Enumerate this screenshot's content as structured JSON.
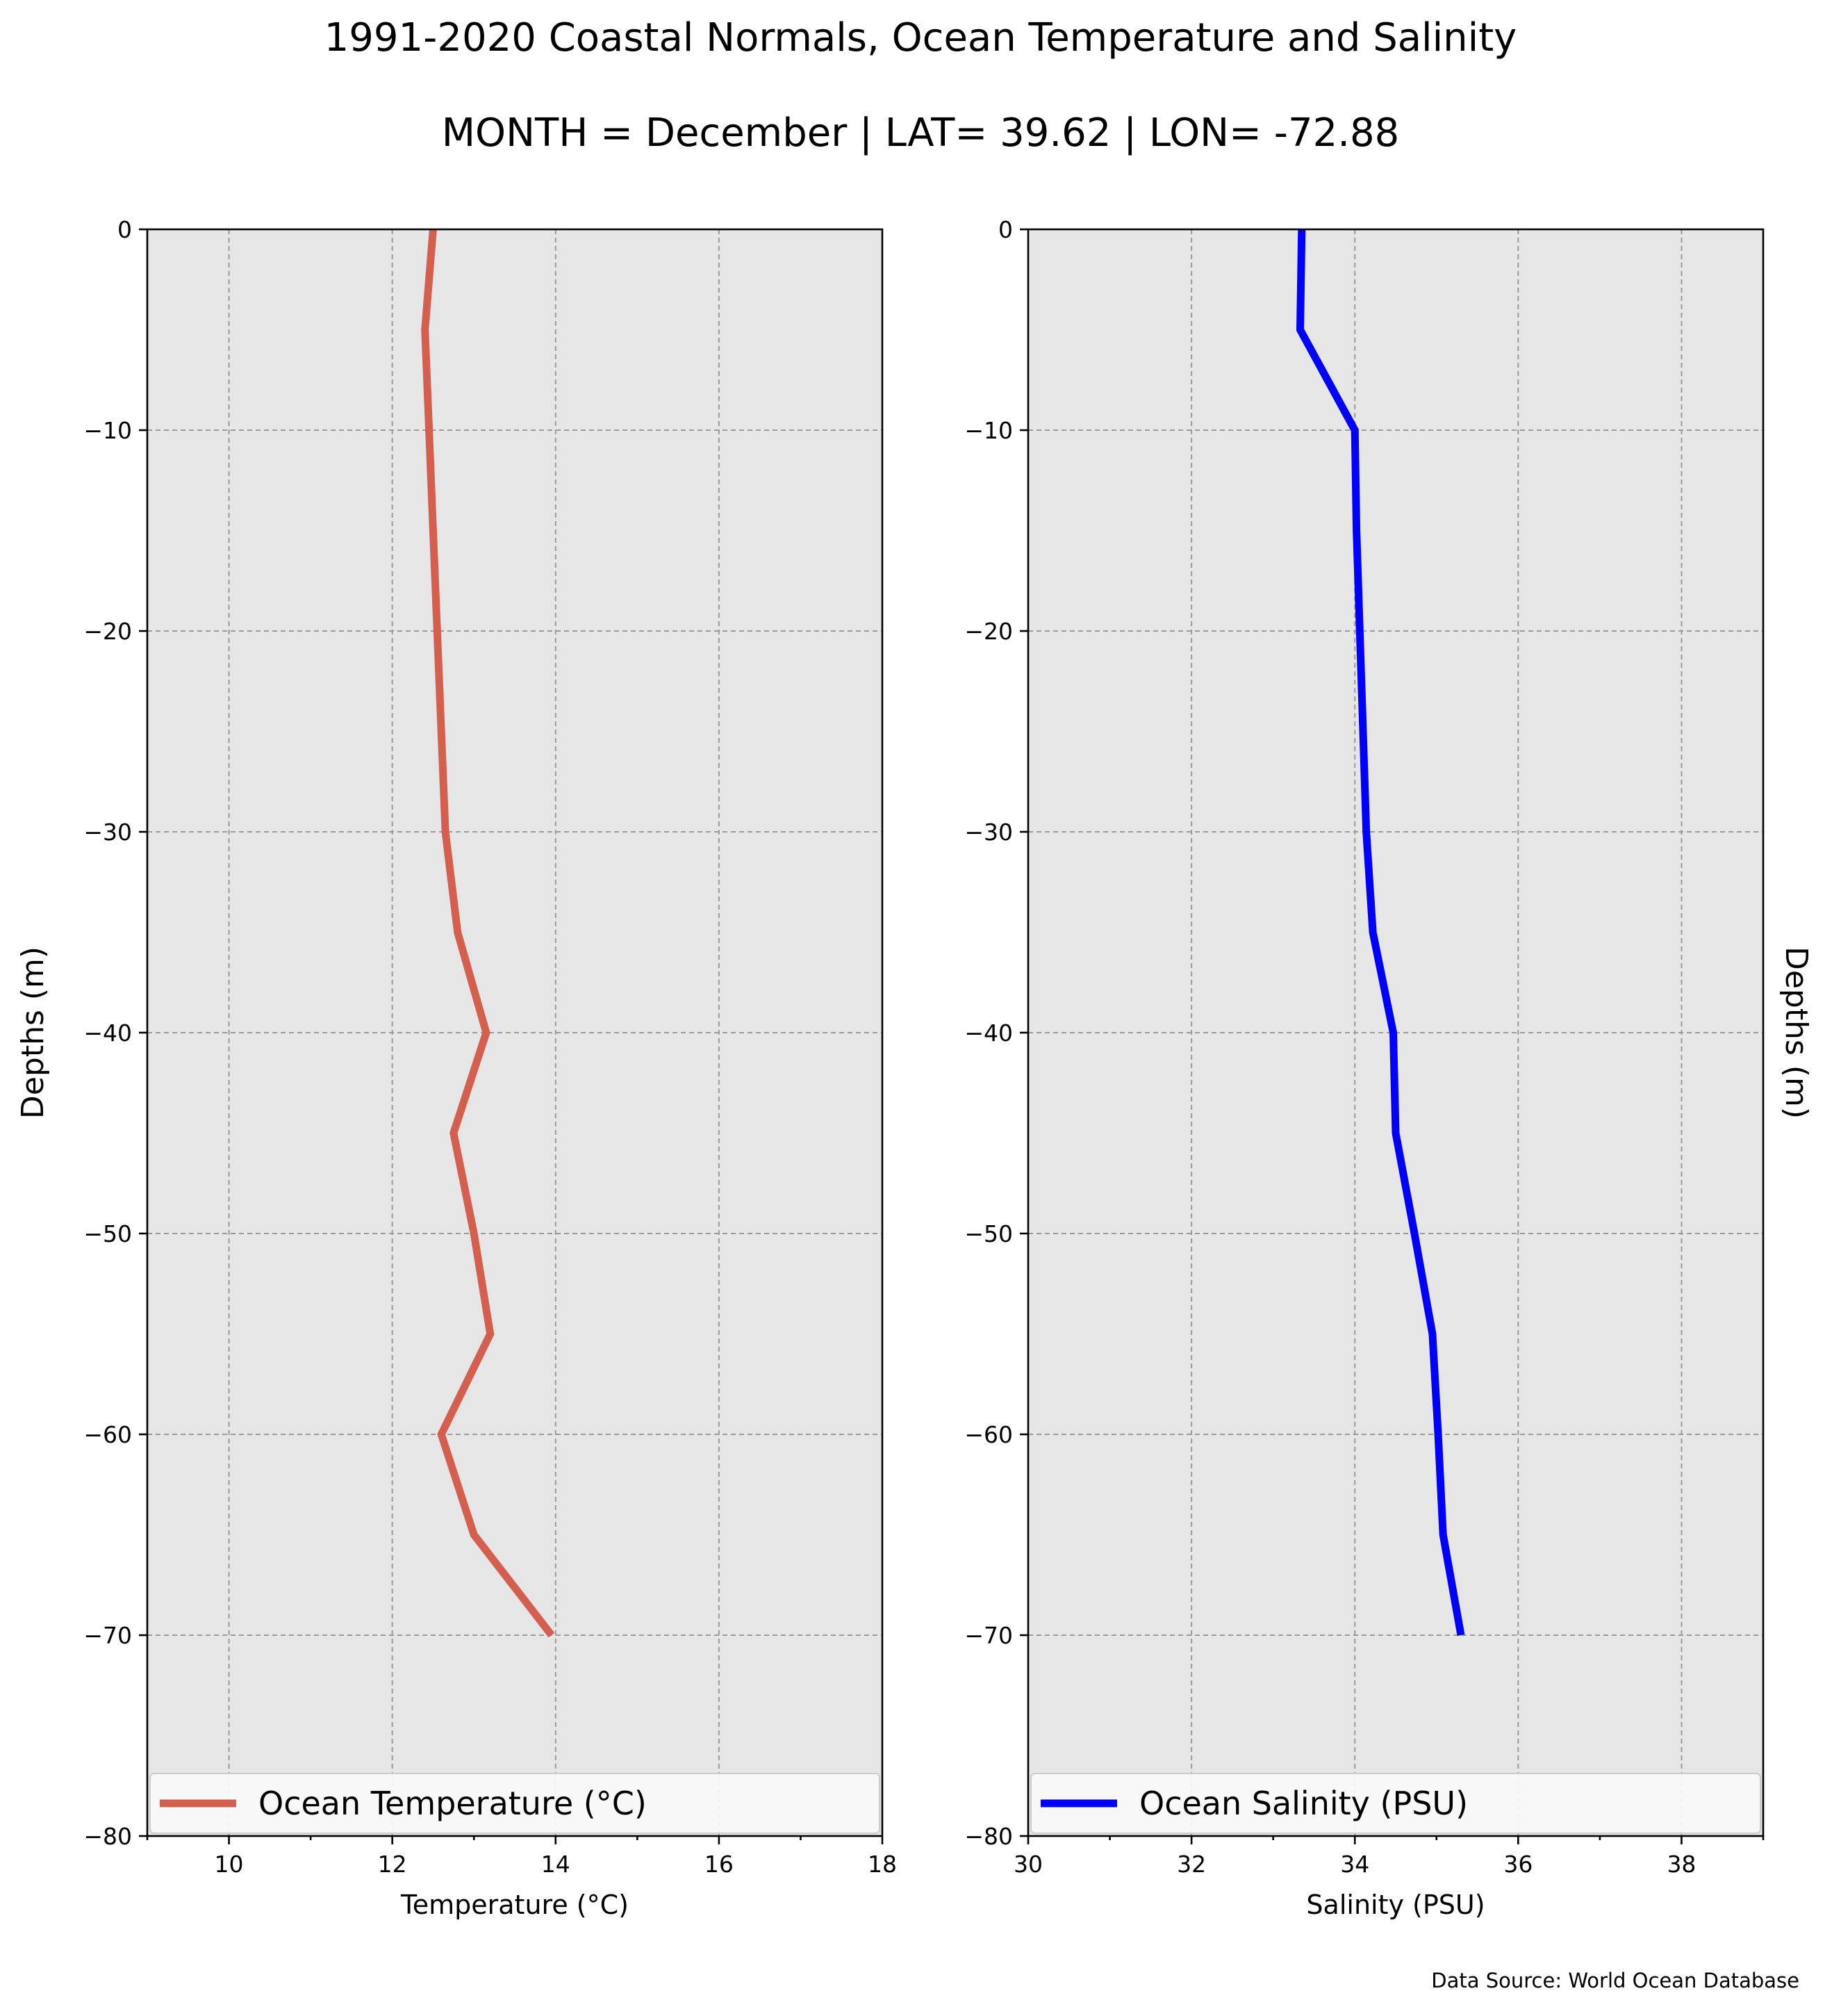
{
  "figure": {
    "title": "1991-2020 Coastal Normals, Ocean Temperature and Salinity",
    "subtitle": "MONTH = December | LAT= 39.62 | LON= -72.88",
    "source": "Data Source: World Ocean Database"
  },
  "chart_data": [
    {
      "type": "line",
      "panel": "left",
      "xlabel": "Temperature ($^\\circ$C)",
      "xlabel_display": "Temperature (°C)",
      "ylabel": "Depths (m)",
      "xlim": [
        9,
        18
      ],
      "ylim": [
        -80,
        0
      ],
      "xticks": [
        10,
        12,
        14,
        16,
        18
      ],
      "yticks": [
        0,
        -10,
        -20,
        -30,
        -40,
        -50,
        -60,
        -70,
        -80
      ],
      "xtick_labels": [
        "10",
        "12",
        "14",
        "16",
        "18"
      ],
      "ytick_labels": [
        "0",
        "−10",
        "−20",
        "−30",
        "−40",
        "−50",
        "−60",
        "−70",
        "−80"
      ],
      "grid": true,
      "legend_position": "lower center",
      "series": [
        {
          "name": "Ocean Temperature (°C)",
          "color": "#d45f4f",
          "x": [
            12.5,
            12.4,
            12.45,
            12.5,
            12.55,
            12.6,
            12.65,
            12.8,
            13.15,
            12.75,
            13.0,
            13.2,
            12.6,
            13.0,
            13.95
          ],
          "y": [
            0,
            -5,
            -10,
            -15,
            -20,
            -25,
            -30,
            -35,
            -40,
            -45,
            -50,
            -55,
            -60,
            -65,
            -70
          ]
        }
      ]
    },
    {
      "type": "line",
      "panel": "right",
      "xlabel": "Salinity (PSU)",
      "ylabel": "Depths (m)",
      "xlim": [
        30,
        39
      ],
      "ylim": [
        -80,
        0
      ],
      "xticks": [
        30,
        32,
        34,
        36,
        38
      ],
      "yticks": [
        0,
        -10,
        -20,
        -30,
        -40,
        -50,
        -60,
        -70,
        -80
      ],
      "xtick_labels": [
        "30",
        "32",
        "34",
        "36",
        "38"
      ],
      "ytick_labels": [
        "0",
        "−10",
        "−20",
        "−30",
        "−40",
        "−50",
        "−60",
        "−70",
        "−80"
      ],
      "grid": true,
      "legend_position": "lower center",
      "series": [
        {
          "name": "Ocean Salinity (PSU)",
          "color": "#0000ff",
          "x": [
            33.35,
            33.33,
            34.0,
            34.02,
            34.06,
            34.1,
            34.14,
            34.22,
            34.47,
            34.5,
            34.73,
            34.95,
            35.02,
            35.08,
            35.3
          ],
          "y": [
            0,
            -5,
            -10,
            -15,
            -20,
            -25,
            -30,
            -35,
            -40,
            -45,
            -50,
            -55,
            -60,
            -65,
            -70
          ]
        }
      ]
    }
  ]
}
